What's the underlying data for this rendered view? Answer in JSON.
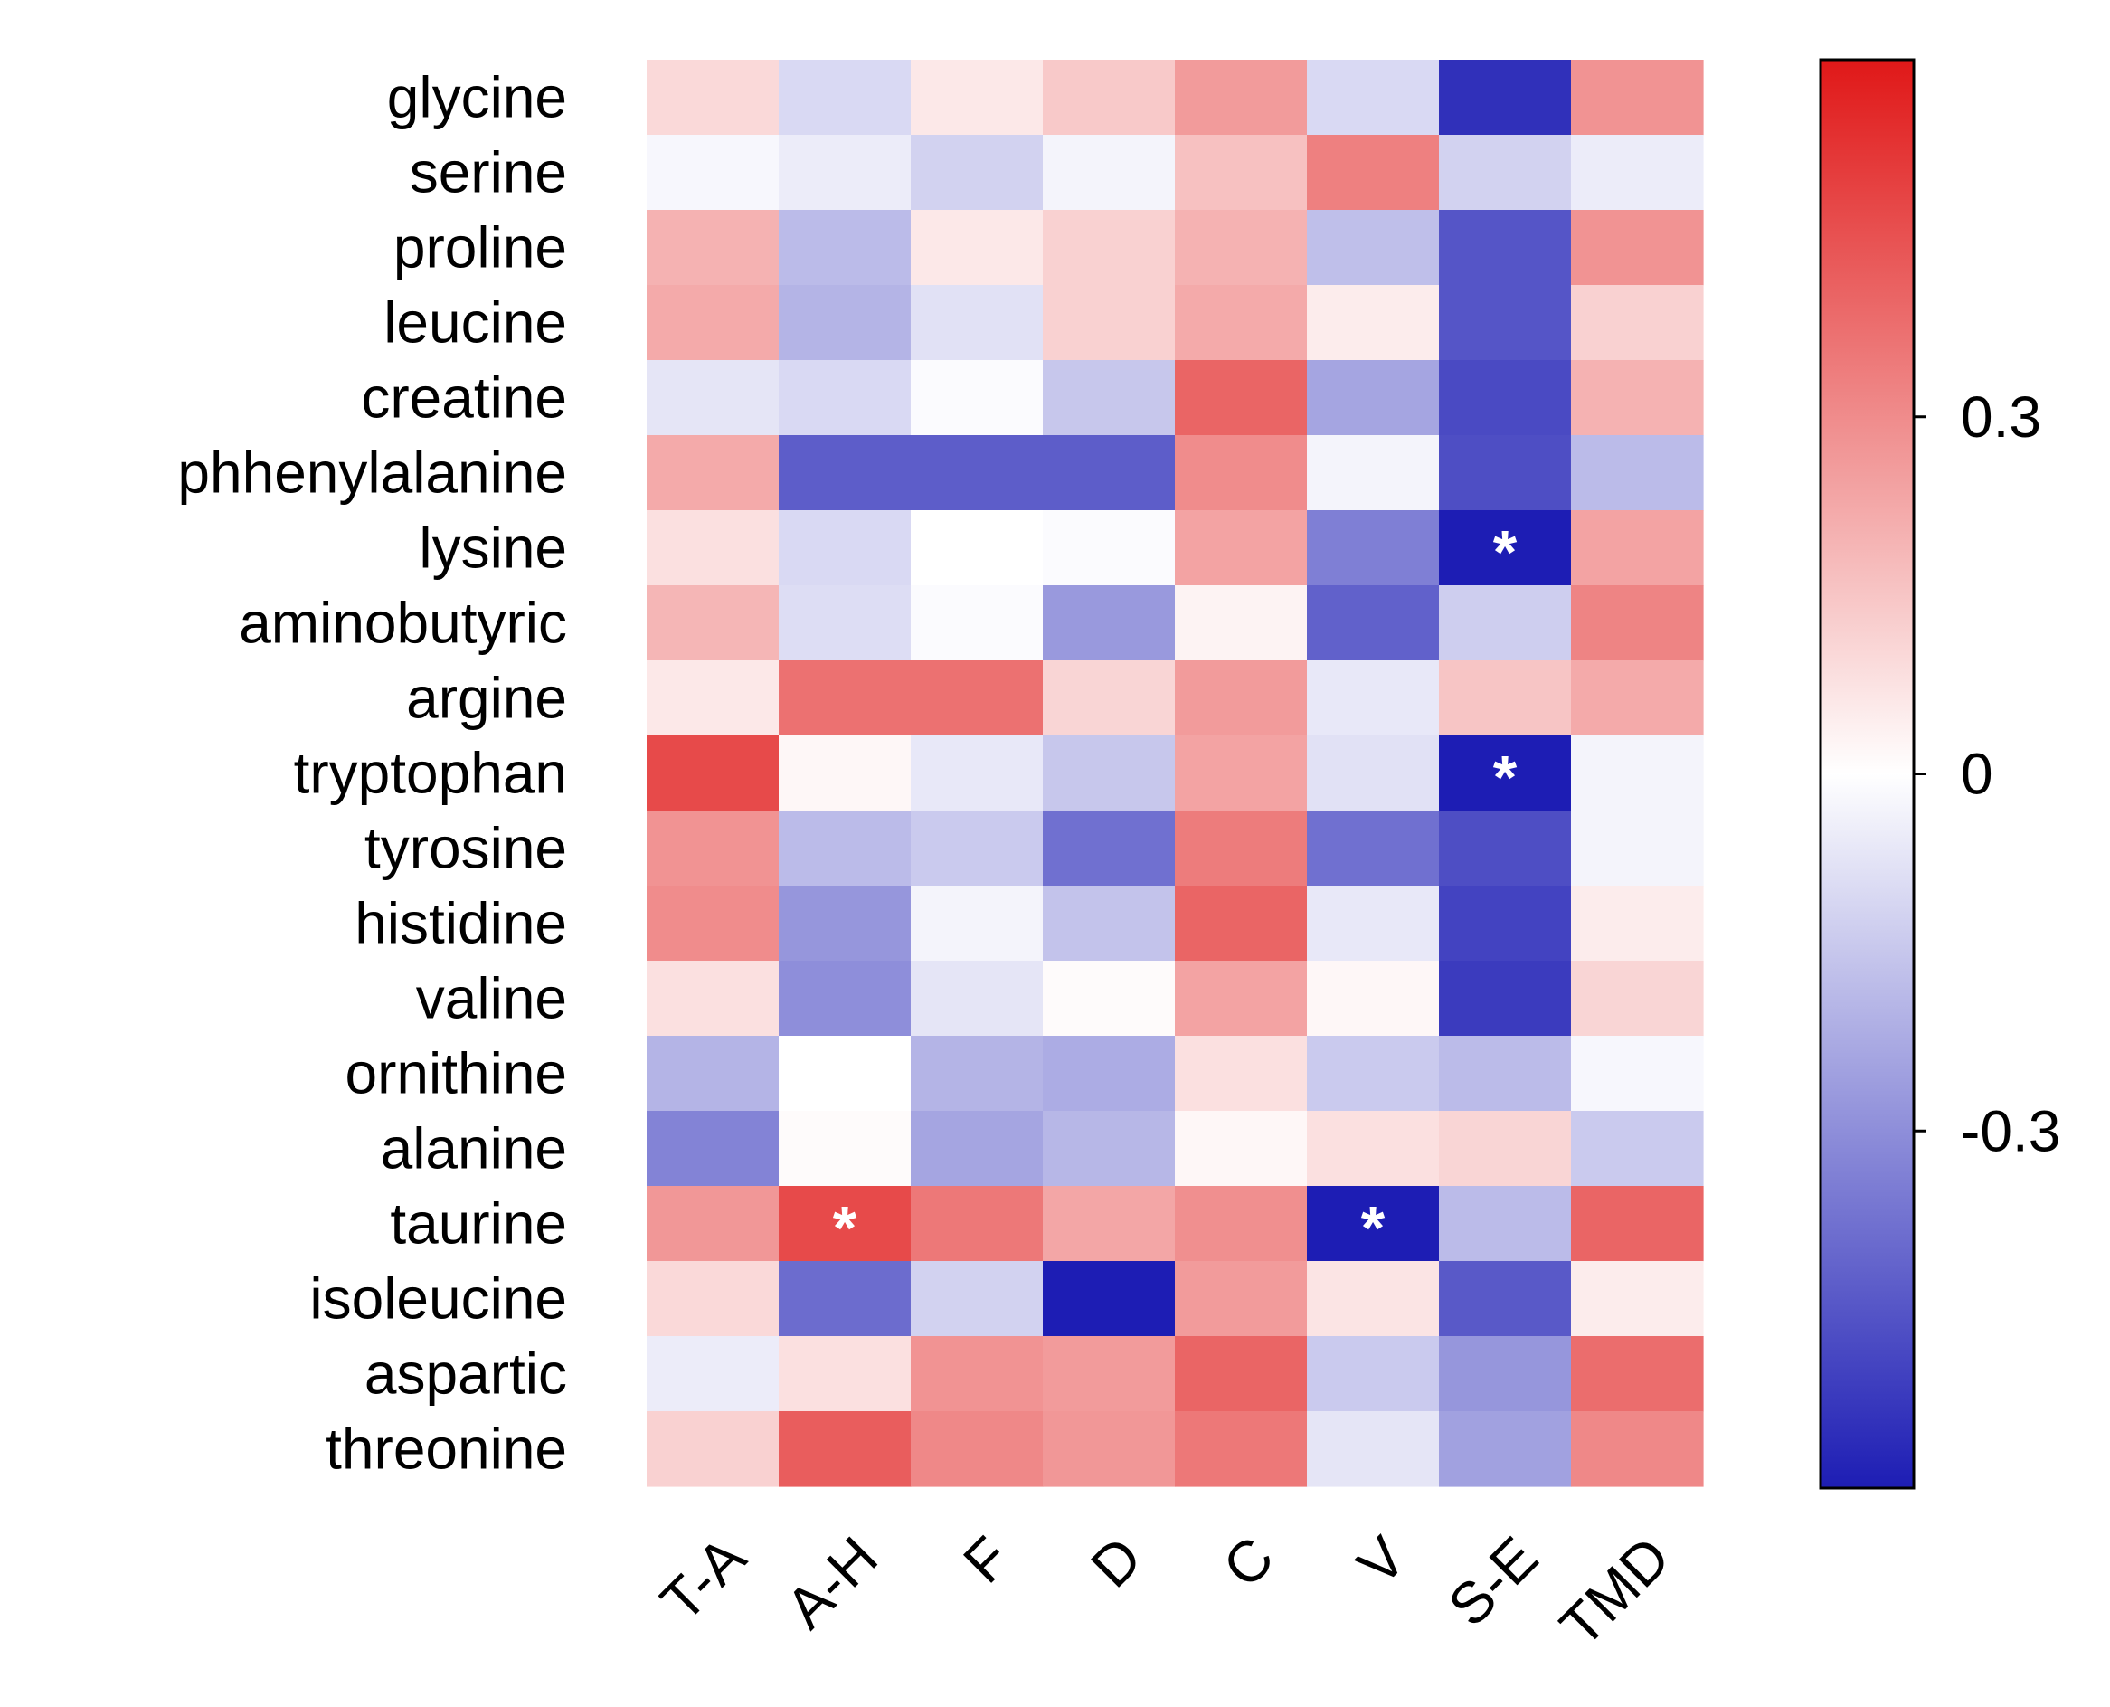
{
  "chart_data": {
    "type": "heatmap",
    "rows": [
      "glycine",
      "serine",
      "proline",
      "leucine",
      "creatine",
      "phhenylalanine",
      "lysine",
      "aminobutyric",
      "argine",
      "tryptophan",
      "tyrosine",
      "histidine",
      "valine",
      "ornithine",
      "alanine",
      "taurine",
      "isoleucine",
      "aspartic",
      "threonine"
    ],
    "columns": [
      "T-A",
      "A-H",
      "F",
      "D",
      "C",
      "V",
      "S-E",
      "TMD"
    ],
    "values": [
      [
        0.1,
        -0.1,
        0.06,
        0.14,
        0.26,
        -0.1,
        -0.55,
        0.28
      ],
      [
        -0.02,
        -0.05,
        -0.12,
        -0.03,
        0.16,
        0.33,
        -0.12,
        -0.05
      ],
      [
        0.2,
        -0.18,
        0.06,
        0.12,
        0.2,
        -0.17,
        -0.45,
        0.28
      ],
      [
        0.22,
        -0.2,
        -0.08,
        0.12,
        0.22,
        0.05,
        -0.45,
        0.12
      ],
      [
        -0.07,
        -0.1,
        -0.01,
        -0.15,
        0.4,
        -0.24,
        -0.48,
        0.2
      ],
      [
        0.22,
        -0.43,
        -0.43,
        -0.43,
        0.3,
        -0.03,
        -0.47,
        -0.18
      ],
      [
        0.08,
        -0.1,
        0.0,
        -0.01,
        0.24,
        -0.34,
        -0.6,
        0.24
      ],
      [
        0.19,
        -0.09,
        -0.01,
        -0.27,
        0.03,
        -0.42,
        -0.13,
        0.32
      ],
      [
        0.06,
        0.37,
        0.37,
        0.11,
        0.26,
        -0.06,
        0.15,
        0.22
      ],
      [
        0.47,
        0.02,
        -0.06,
        -0.15,
        0.24,
        -0.08,
        -0.6,
        -0.03
      ],
      [
        0.28,
        -0.18,
        -0.14,
        -0.38,
        0.34,
        -0.38,
        -0.47,
        -0.03
      ],
      [
        0.3,
        -0.28,
        -0.03,
        -0.16,
        0.4,
        -0.06,
        -0.5,
        0.05
      ],
      [
        0.08,
        -0.3,
        -0.07,
        0.01,
        0.24,
        0.02,
        -0.52,
        0.11
      ],
      [
        -0.2,
        0.0,
        -0.2,
        -0.22,
        0.08,
        -0.14,
        -0.18,
        -0.02
      ],
      [
        -0.33,
        0.01,
        -0.24,
        -0.19,
        0.02,
        0.08,
        0.11,
        -0.14
      ],
      [
        0.27,
        0.47,
        0.35,
        0.23,
        0.29,
        -0.6,
        -0.18,
        0.4
      ],
      [
        0.1,
        -0.39,
        -0.12,
        -0.67,
        0.26,
        0.07,
        -0.44,
        0.05
      ],
      [
        -0.05,
        0.08,
        0.28,
        0.26,
        0.4,
        -0.14,
        -0.28,
        0.38
      ],
      [
        0.12,
        0.42,
        0.31,
        0.27,
        0.35,
        -0.07,
        -0.25,
        0.31
      ]
    ],
    "significant": [
      {
        "row": "lysine",
        "column": "S-E",
        "marker": "*"
      },
      {
        "row": "tryptophan",
        "column": "S-E",
        "marker": "*"
      },
      {
        "row": "taurine",
        "column": "A-H",
        "marker": "*"
      },
      {
        "row": "taurine",
        "column": "V",
        "marker": "*"
      }
    ],
    "colorbar": {
      "min": -0.6,
      "max": 0.6,
      "ticks": [
        0.3,
        0,
        -0.3
      ],
      "tick_labels": [
        "0.3",
        "0",
        "-0.3"
      ],
      "low_color": "#1d1db4",
      "mid_color": "#ffffff",
      "high_color": "#e01818"
    }
  }
}
